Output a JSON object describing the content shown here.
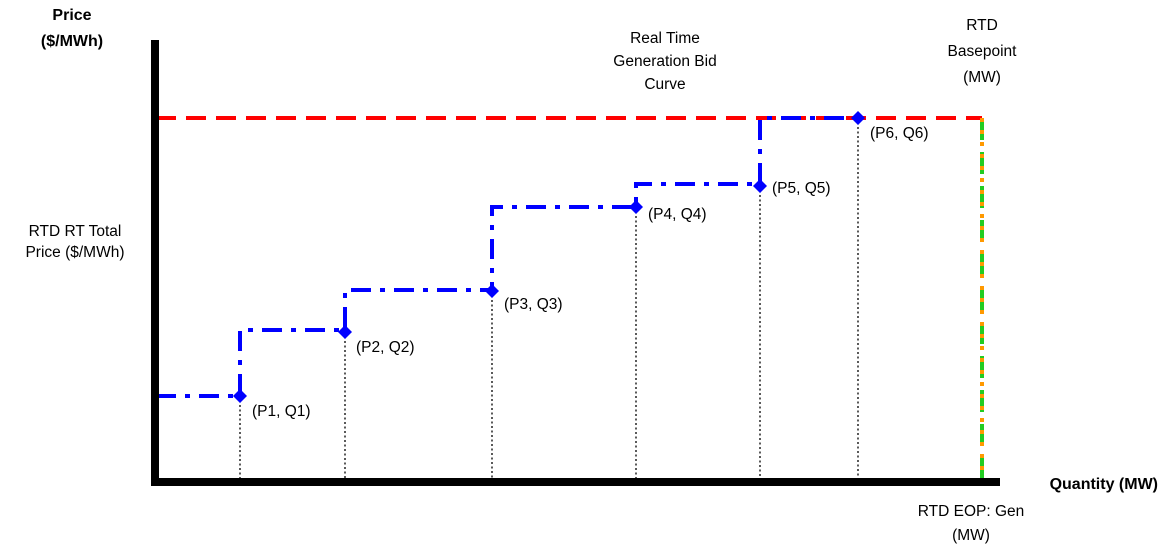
{
  "y_axis_label": [
    "Price",
    "($/MWh)"
  ],
  "x_axis_label": "Quantity (MW)",
  "rt_price_label": [
    "RTD RT Total",
    "Price ($/MWh)"
  ],
  "curve_label": [
    "Real Time",
    "Generation Bid",
    "Curve"
  ],
  "basepoint_label": [
    "RTD",
    "Basepoint",
    "(MW)"
  ],
  "eop_label": [
    "RTD EOP: Gen",
    "(MW)"
  ],
  "points": [
    {
      "label": "(P1, Q1)"
    },
    {
      "label": "(P2, Q2)"
    },
    {
      "label": "(P3, Q3)"
    },
    {
      "label": "(P4, Q4)"
    },
    {
      "label": "(P5, Q5)"
    },
    {
      "label": "(P6, Q6)"
    }
  ],
  "colors": {
    "axis": "#000000",
    "bid_curve": "#0000ff",
    "price_line": "#ff0000",
    "basepoint_green": "#22cc22",
    "basepoint_orange": "#ff9900"
  }
}
